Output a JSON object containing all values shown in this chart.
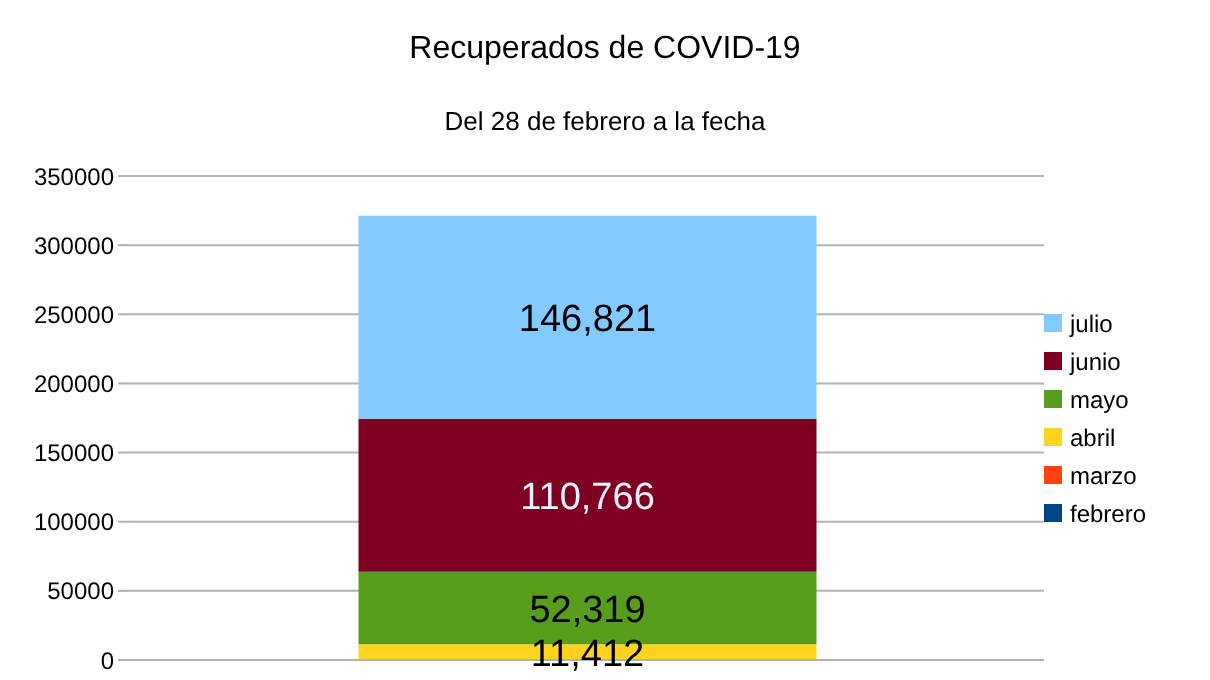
{
  "chart_data": {
    "type": "bar",
    "title": "Recuperados de COVID-19",
    "subtitle": "Del 28 de febrero a la fecha",
    "categories": [
      null
    ],
    "stacked": true,
    "series": [
      {
        "name": "febrero",
        "color": "#004586",
        "values": [
          0
        ],
        "value_labels": [
          null
        ]
      },
      {
        "name": "marzo",
        "color": "#ff420e",
        "values": [
          0
        ],
        "value_labels": [
          null
        ]
      },
      {
        "name": "abril",
        "color": "#ffd320",
        "values": [
          11412
        ],
        "value_labels": [
          "11,412"
        ]
      },
      {
        "name": "mayo",
        "color": "#579d1c",
        "values": [
          52319
        ],
        "value_labels": [
          "52,319"
        ]
      },
      {
        "name": "junio",
        "color": "#7e0021",
        "values": [
          110766
        ],
        "value_labels": [
          "110,766"
        ]
      },
      {
        "name": "julio",
        "color": "#83caff",
        "values": [
          146821
        ],
        "value_labels": [
          "146,821"
        ]
      }
    ],
    "ylim": [
      0,
      350000
    ],
    "yticks": [
      0,
      50000,
      100000,
      150000,
      200000,
      250000,
      300000,
      350000
    ],
    "grid": "y",
    "legend": "right"
  }
}
